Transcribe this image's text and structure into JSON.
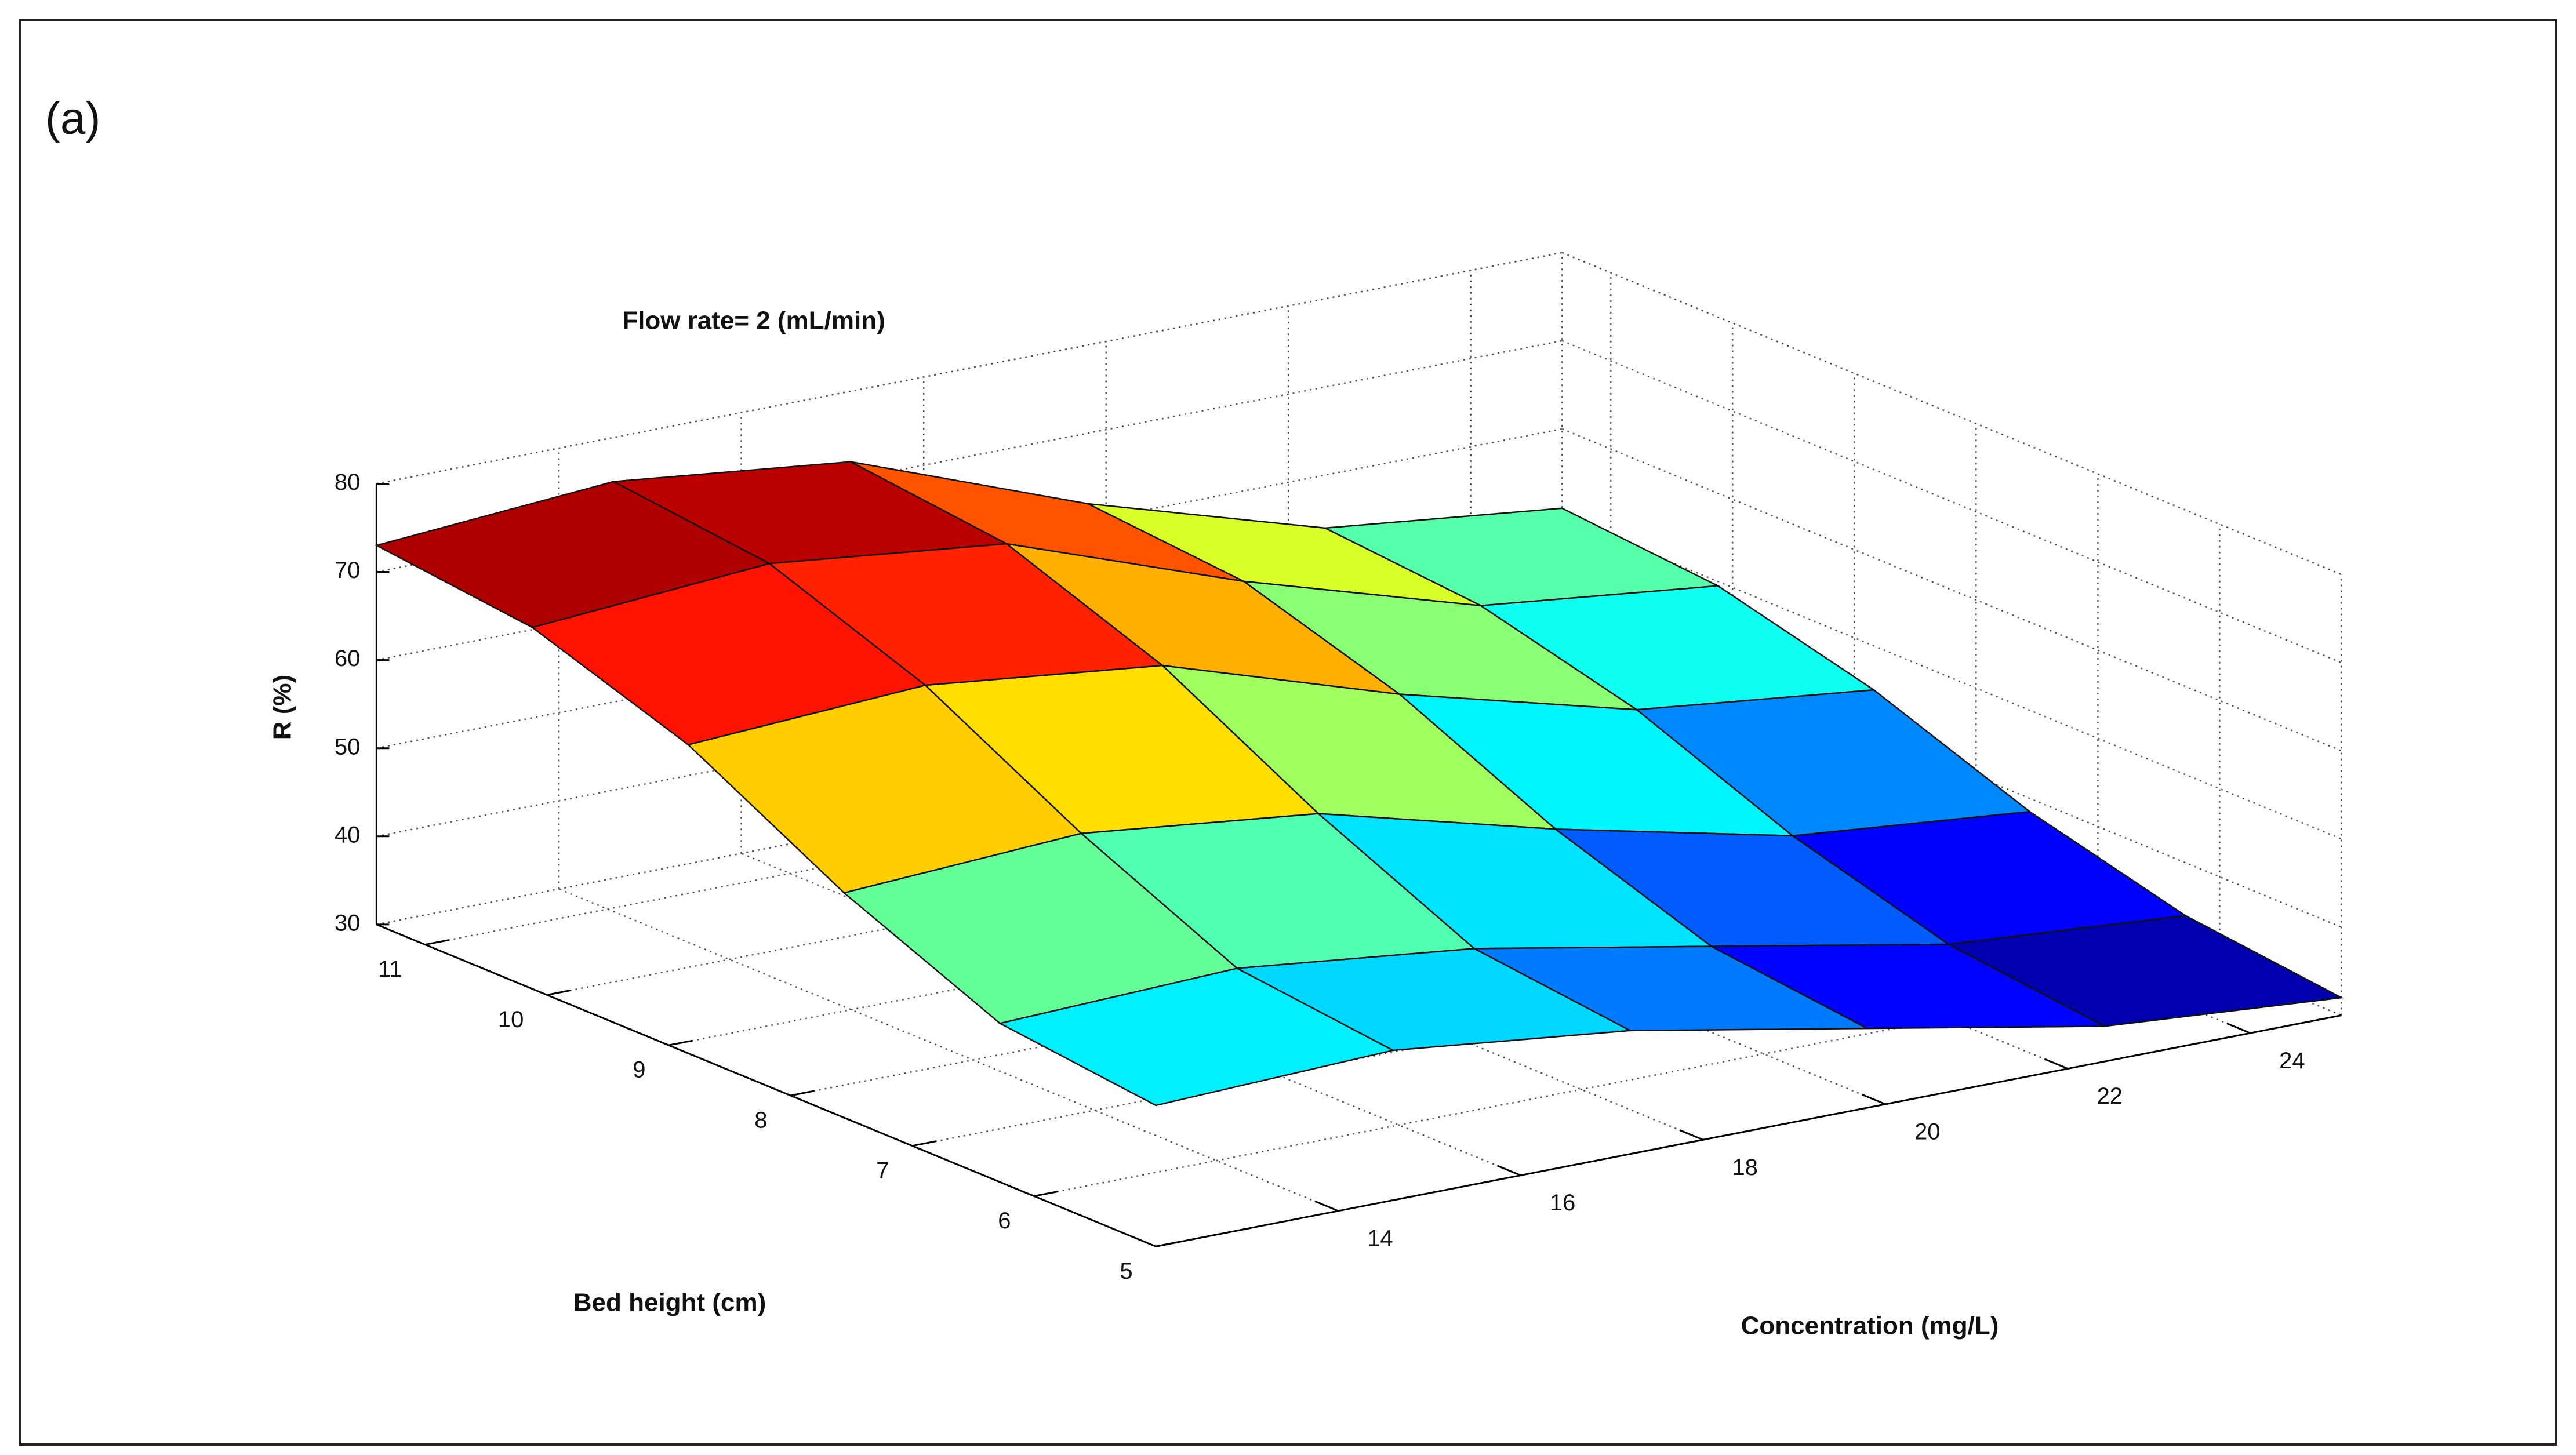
{
  "panel_label": "(a)",
  "chart_data": {
    "type": "surface",
    "title": "Flow rate= 2 (mL/min)",
    "xlabel": "Concentration (mg/L)",
    "ylabel": "Bed height (cm)",
    "zlabel": "R (%)",
    "x": [
      12,
      14.6,
      17.2,
      19.8,
      22.4,
      25
    ],
    "y": [
      5,
      6.28,
      7.56,
      8.84,
      10.12,
      11.4
    ],
    "z": [
      [
        46,
        47,
        44,
        39,
        34,
        32
      ],
      [
        48,
        49,
        46,
        41,
        36,
        34
      ],
      [
        55.5,
        57,
        54,
        47,
        41,
        38.5
      ],
      [
        65,
        66.5,
        63.5,
        55,
        48,
        45
      ],
      [
        71,
        73,
        70,
        60.5,
        52.5,
        49.5
      ],
      [
        73,
        75,
        72,
        62,
        54,
        51
      ]
    ],
    "xlim": [
      12,
      25
    ],
    "ylim": [
      5,
      11.4
    ],
    "zlim": [
      30,
      80
    ],
    "xticks": [
      14,
      16,
      18,
      20,
      22,
      24
    ],
    "yticks": [
      5,
      6,
      7,
      8,
      9,
      10,
      11
    ],
    "zticks": [
      30,
      40,
      50,
      60,
      70,
      80
    ],
    "grid": true,
    "colormap": "jet"
  }
}
